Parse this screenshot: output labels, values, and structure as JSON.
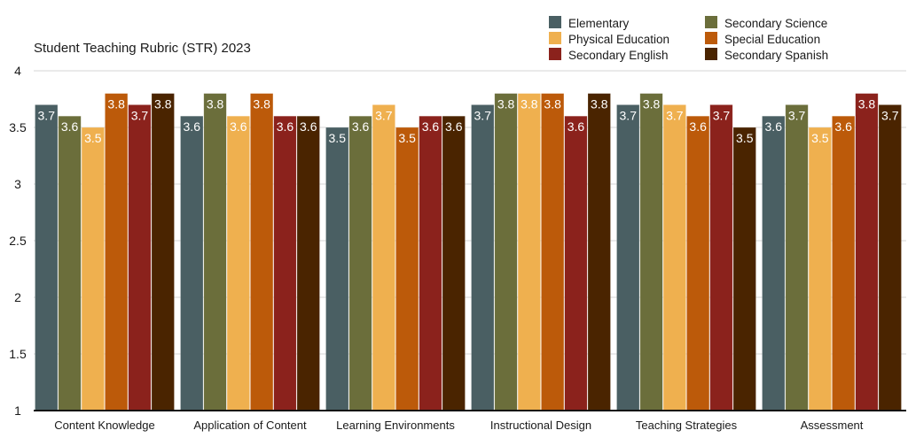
{
  "chart_data": {
    "type": "bar",
    "title": "Student Teaching Rubric (STR) 2023",
    "xlabel": "",
    "ylabel": "",
    "ylim": [
      1,
      4
    ],
    "yticks": [
      1,
      1.5,
      2,
      2.5,
      3,
      3.5,
      4
    ],
    "ytick_labels": [
      "1",
      "1.5",
      "2",
      "2.5",
      "3",
      "3.5",
      "4"
    ],
    "grid": true,
    "legend_position": "top-right",
    "categories": [
      "Content Knowledge",
      "Application of Content",
      "Learning Environments",
      "Instructional Design",
      "Teaching Strategies",
      "Assessment"
    ],
    "series": [
      {
        "name": "Elementary",
        "color": "#4a5f63",
        "values": [
          3.7,
          3.6,
          3.5,
          3.7,
          3.7,
          3.6
        ]
      },
      {
        "name": "Secondary Science",
        "color": "#6b6e3b",
        "values": [
          3.6,
          3.8,
          3.6,
          3.8,
          3.8,
          3.7
        ]
      },
      {
        "name": "Physical Education",
        "color": "#efb04f",
        "values": [
          3.5,
          3.6,
          3.7,
          3.8,
          3.7,
          3.5
        ]
      },
      {
        "name": "Special Education",
        "color": "#bc5a0a",
        "values": [
          3.8,
          3.8,
          3.5,
          3.8,
          3.6,
          3.6
        ]
      },
      {
        "name": "Secondary English",
        "color": "#8b221c",
        "values": [
          3.7,
          3.6,
          3.6,
          3.6,
          3.7,
          3.8
        ]
      },
      {
        "name": "Secondary Spanish",
        "color": "#4a2400",
        "values": [
          3.8,
          3.6,
          3.6,
          3.8,
          3.5,
          3.7
        ]
      }
    ],
    "legend_order": [
      "Elementary",
      "Physical Education",
      "Secondary English",
      "Secondary Science",
      "Special Education",
      "Secondary Spanish"
    ]
  }
}
